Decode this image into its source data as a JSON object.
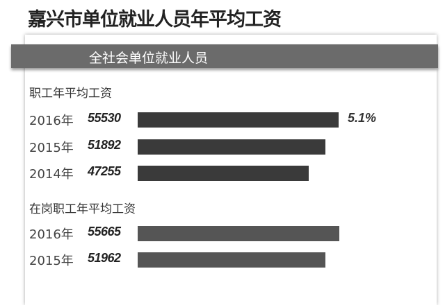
{
  "chart_data": {
    "type": "bar",
    "orientation": "horizontal",
    "title": "嘉兴市单位就业人员年平均工资",
    "banner": "全社会单位就业人员",
    "groups": [
      {
        "label": "职工年平均工资",
        "color": "#3a3a3a",
        "categories": [
          "2016年",
          "2015年",
          "2014年"
        ],
        "values": [
          55530,
          51892,
          47255
        ]
      },
      {
        "label": "在岗职工年平均工资",
        "color": "#555555",
        "categories": [
          "2016年",
          "2015年"
        ],
        "values": [
          55665,
          51962
        ]
      }
    ],
    "annotation": "5.1%",
    "xlim": [
      0,
      55530
    ]
  }
}
